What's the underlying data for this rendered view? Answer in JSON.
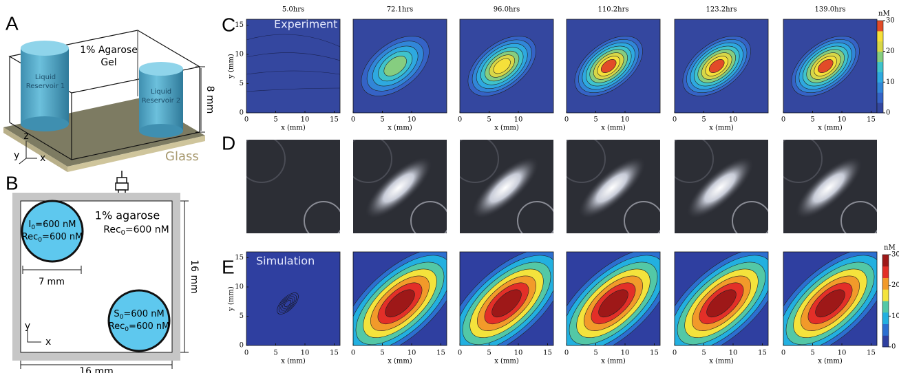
{
  "figure": {
    "panel_a": {
      "label": "A",
      "gel": [
        "1% Agarose",
        "Gel"
      ],
      "reservoir_1": [
        "Liquid",
        "Reservoir 1"
      ],
      "reservoir_2": [
        "Liquid",
        "Reservoir 2"
      ],
      "height": "8 mm",
      "glass": "Glass",
      "axes": [
        "z",
        "y",
        "x"
      ]
    },
    "panel_b": {
      "label": "B",
      "medium": "1% agarose",
      "medium_rec": {
        "symbol": "Rec",
        "sub": "0",
        "rest": "=600 nM"
      },
      "source_1": [
        {
          "symbol": "I",
          "sub": "0",
          "rest": "=600 nM"
        },
        {
          "symbol": "Rec",
          "sub": "0",
          "rest": "=600 nM"
        }
      ],
      "source_2": [
        {
          "symbol": "S",
          "sub": "0",
          "rest": "=600 nM"
        },
        {
          "symbol": "Rec",
          "sub": "0",
          "rest": "=600 nM"
        }
      ],
      "radius_label": "7 mm",
      "side_label": "16 mm",
      "axes": [
        "y",
        "x"
      ]
    },
    "panel_c": {
      "label": "C",
      "overlay": "Experiment",
      "xlabel": "x (mm)",
      "ylabel": "y (mm)",
      "xlim": [
        0,
        16
      ],
      "ylim": [
        0,
        16
      ],
      "yticks": [
        0,
        5,
        10,
        15
      ],
      "plots": [
        {
          "title": "5.0hrs",
          "xticks": [
            0,
            5,
            10,
            15
          ]
        },
        {
          "title": "72.1hrs",
          "xticks": [
            0,
            5,
            10
          ]
        },
        {
          "title": "96.0hrs",
          "xticks": [
            0,
            5,
            10
          ]
        },
        {
          "title": "110.2hrs",
          "xticks": [
            0,
            5,
            10
          ]
        },
        {
          "title": "123.2hrs",
          "xticks": [
            0,
            5,
            10
          ]
        },
        {
          "title": "139.0hrs",
          "xticks": [
            0,
            5,
            10,
            15
          ]
        }
      ],
      "colorbar": {
        "unit": "nM",
        "lim": [
          0,
          30
        ],
        "ticks": [
          0,
          10,
          20,
          30
        ]
      }
    },
    "panel_d": {
      "label": "D"
    },
    "panel_e": {
      "label": "E",
      "overlay": "Simulation",
      "xlabel": "x (mm)",
      "ylabel": "y (mm)",
      "xlim": [
        0,
        16
      ],
      "ylim": [
        0,
        16
      ],
      "yticks": [
        0,
        5,
        10,
        15
      ],
      "plots": [
        {
          "xticks": [
            0,
            5,
            10,
            15
          ]
        },
        {
          "xticks": [
            0,
            5,
            10,
            15
          ]
        },
        {
          "xticks": [
            0,
            5,
            10,
            15
          ]
        },
        {
          "xticks": [
            0,
            5,
            10,
            15
          ]
        },
        {
          "xticks": [
            0,
            5,
            10,
            15
          ]
        },
        {
          "xticks": [
            0,
            5,
            10,
            15
          ]
        }
      ],
      "colorbar": {
        "unit": "nM",
        "lim": [
          0,
          30
        ],
        "ticks": [
          0,
          10,
          20,
          30
        ]
      }
    }
  }
}
